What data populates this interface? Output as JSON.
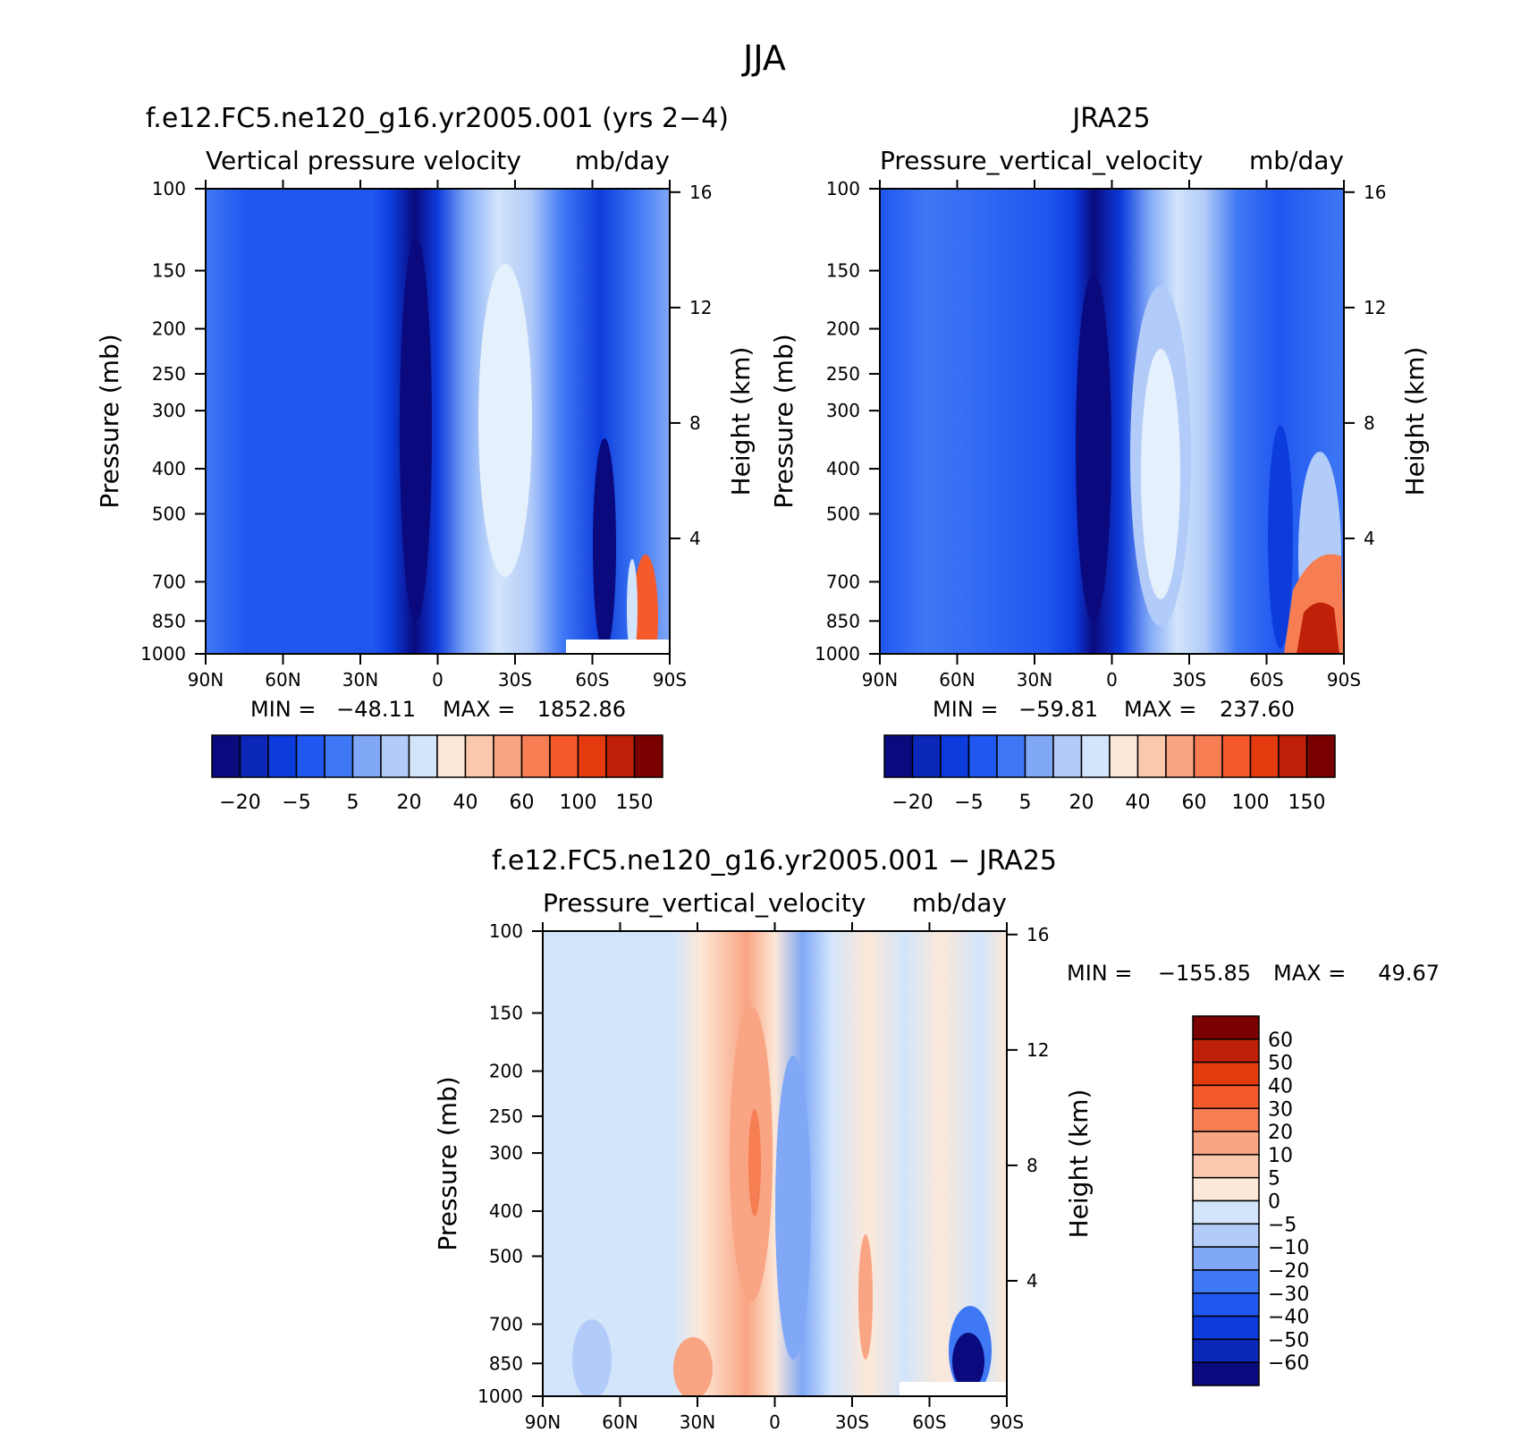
{
  "suptitle": "JJA",
  "colors": {
    "positive_ramp": [
      "#fde8d8",
      "#fbc8ad",
      "#f9a482",
      "#f77d52",
      "#f45a2a",
      "#e33a0e",
      "#bf2008",
      "#7a0000"
    ],
    "negative_ramp": [
      "#0a0a7e",
      "#0b27b8",
      "#0d3cdc",
      "#1f57f0",
      "#3f78f5",
      "#80a8f7",
      "#b2cbf8",
      "#d2e5fb"
    ]
  },
  "chart_data": [
    {
      "type": "heatmap",
      "name": "model",
      "title": "f.e12.FC5.ne120_g16.yr2005.001 (yrs 2-4)",
      "subtitle": "Vertical pressure velocity",
      "units": "mb/day",
      "xlabel": "",
      "ylabel": "Pressure (mb)",
      "ylabel_right": "Height (km)",
      "x_ticks": [
        "90N",
        "60N",
        "30N",
        "0",
        "30S",
        "60S",
        "90S"
      ],
      "x_range": [
        90,
        -90
      ],
      "y_ticks": [
        100,
        150,
        200,
        250,
        300,
        400,
        500,
        700,
        850,
        1000
      ],
      "y_range": [
        100,
        1000
      ],
      "y_scale": "log",
      "height_ticks": [
        4,
        8,
        12,
        16
      ],
      "stats": {
        "min_label": "MIN =",
        "min": "-48.11",
        "max_label": "MAX =",
        "max": "1852.86"
      },
      "colorbar_orientation": "horizontal",
      "colorbar_tick_labels": [
        "-20",
        "-5",
        "5",
        "20",
        "40",
        "60",
        "100",
        "150"
      ]
    },
    {
      "type": "heatmap",
      "name": "obs",
      "title": "JRA25",
      "subtitle": "Pressure_vertical_velocity",
      "units": "mb/day",
      "xlabel": "",
      "ylabel": "Pressure (mb)",
      "ylabel_right": "Height (km)",
      "x_ticks": [
        "90N",
        "60N",
        "30N",
        "0",
        "30S",
        "60S",
        "90S"
      ],
      "x_range": [
        90,
        -90
      ],
      "y_ticks": [
        100,
        150,
        200,
        250,
        300,
        400,
        500,
        700,
        850,
        1000
      ],
      "y_range": [
        100,
        1000
      ],
      "y_scale": "log",
      "height_ticks": [
        4,
        8,
        12,
        16
      ],
      "stats": {
        "min_label": "MIN =",
        "min": "-59.81",
        "max_label": "MAX =",
        "max": "237.60"
      },
      "colorbar_orientation": "horizontal",
      "colorbar_tick_labels": [
        "-20",
        "-5",
        "5",
        "20",
        "40",
        "60",
        "100",
        "150"
      ]
    },
    {
      "type": "heatmap",
      "name": "diff",
      "title": "f.e12.FC5.ne120_g16.yr2005.001 - JRA25",
      "subtitle": "Pressure_vertical_velocity",
      "units": "mb/day",
      "xlabel": "",
      "ylabel": "Pressure (mb)",
      "ylabel_right": "Height (km)",
      "x_ticks": [
        "90N",
        "60N",
        "30N",
        "0",
        "30S",
        "60S",
        "90S"
      ],
      "x_range": [
        90,
        -90
      ],
      "y_ticks": [
        100,
        150,
        200,
        250,
        300,
        400,
        500,
        700,
        850,
        1000
      ],
      "y_range": [
        100,
        1000
      ],
      "y_scale": "log",
      "height_ticks": [
        4,
        8,
        12,
        16
      ],
      "stats": {
        "min_label": "MIN =",
        "min": "-155.85",
        "max_label": "MAX =",
        "max": "49.67"
      },
      "colorbar_orientation": "vertical",
      "colorbar_tick_labels": [
        "60",
        "50",
        "40",
        "30",
        "20",
        "10",
        "5",
        "0",
        "-5",
        "-10",
        "-20",
        "-30",
        "-40",
        "-50",
        "-60"
      ]
    }
  ]
}
